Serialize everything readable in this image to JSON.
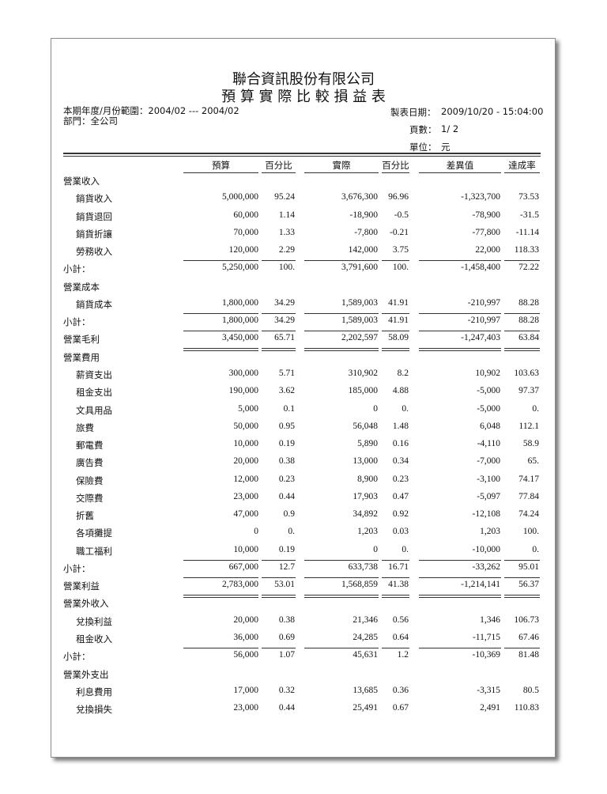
{
  "report": {
    "company": "聯合資訊股份有限公司",
    "title": "預 算 實 際 比 較 損 益 表",
    "period_label": "本期年度/月份範圍：2004/02 --- 2004/02",
    "department_label": "部門：全公司",
    "date_label": "製表日期：",
    "date_value": "2009/10/20 - 15:04:00",
    "page_label": "頁數：",
    "page_value": "1/ 2",
    "unit_label": "單位：",
    "unit_value": "元"
  },
  "columns": [
    "預算",
    "百分比",
    "實際",
    "百分比",
    "差異值",
    "達成率"
  ],
  "rows": [
    {
      "kind": "section",
      "label": "營業收入",
      "values": []
    },
    {
      "kind": "item",
      "label": "銷貨收入",
      "values": [
        "5,000,000",
        "95.24",
        "3,676,300",
        "96.96",
        "-1,323,700",
        "73.53"
      ]
    },
    {
      "kind": "item",
      "label": "銷貨退回",
      "values": [
        "60,000",
        "1.14",
        "-18,900",
        "-0.5",
        "-78,900",
        "-31.5"
      ]
    },
    {
      "kind": "item",
      "label": "銷貨折讓",
      "values": [
        "70,000",
        "1.33",
        "-7,800",
        "-0.21",
        "-77,800",
        "-11.14"
      ]
    },
    {
      "kind": "item",
      "label": "勞務收入",
      "values": [
        "120,000",
        "2.29",
        "142,000",
        "3.75",
        "22,000",
        "118.33"
      ]
    },
    {
      "kind": "subtotal",
      "label": "小計：",
      "values": [
        "5,250,000",
        "100.",
        "3,791,600",
        "100.",
        "-1,458,400",
        "72.22"
      ]
    },
    {
      "kind": "section",
      "label": "營業成本",
      "values": []
    },
    {
      "kind": "item",
      "label": "銷貨成本",
      "values": [
        "1,800,000",
        "34.29",
        "1,589,003",
        "41.91",
        "-210,997",
        "88.28"
      ]
    },
    {
      "kind": "subtotal",
      "label": "小計：",
      "values": [
        "1,800,000",
        "34.29",
        "1,589,003",
        "41.91",
        "-210,997",
        "88.28"
      ]
    },
    {
      "kind": "total",
      "label": "營業毛利",
      "values": [
        "3,450,000",
        "65.71",
        "2,202,597",
        "58.09",
        "-1,247,403",
        "63.84"
      ]
    },
    {
      "kind": "section",
      "label": "營業費用",
      "values": []
    },
    {
      "kind": "item",
      "label": "薪資支出",
      "values": [
        "300,000",
        "5.71",
        "310,902",
        "8.2",
        "10,902",
        "103.63"
      ]
    },
    {
      "kind": "item",
      "label": "租金支出",
      "values": [
        "190,000",
        "3.62",
        "185,000",
        "4.88",
        "-5,000",
        "97.37"
      ]
    },
    {
      "kind": "item",
      "label": "文具用品",
      "values": [
        "5,000",
        "0.1",
        "0",
        "0.",
        "-5,000",
        "0."
      ]
    },
    {
      "kind": "item",
      "label": "旅費",
      "values": [
        "50,000",
        "0.95",
        "56,048",
        "1.48",
        "6,048",
        "112.1"
      ]
    },
    {
      "kind": "item",
      "label": "郵電費",
      "values": [
        "10,000",
        "0.19",
        "5,890",
        "0.16",
        "-4,110",
        "58.9"
      ]
    },
    {
      "kind": "item",
      "label": "廣告費",
      "values": [
        "20,000",
        "0.38",
        "13,000",
        "0.34",
        "-7,000",
        "65."
      ]
    },
    {
      "kind": "item",
      "label": "保險費",
      "values": [
        "12,000",
        "0.23",
        "8,900",
        "0.23",
        "-3,100",
        "74.17"
      ]
    },
    {
      "kind": "item",
      "label": "交際費",
      "values": [
        "23,000",
        "0.44",
        "17,903",
        "0.47",
        "-5,097",
        "77.84"
      ]
    },
    {
      "kind": "item",
      "label": "折舊",
      "values": [
        "47,000",
        "0.9",
        "34,892",
        "0.92",
        "-12,108",
        "74.24"
      ]
    },
    {
      "kind": "item",
      "label": "各項攤提",
      "values": [
        "0",
        "0.",
        "1,203",
        "0.03",
        "1,203",
        "100."
      ]
    },
    {
      "kind": "item",
      "label": "職工福利",
      "values": [
        "10,000",
        "0.19",
        "0",
        "0.",
        "-10,000",
        "0."
      ]
    },
    {
      "kind": "subtotal",
      "label": "小計：",
      "values": [
        "667,000",
        "12.7",
        "633,738",
        "16.71",
        "-33,262",
        "95.01"
      ]
    },
    {
      "kind": "total",
      "label": "營業利益",
      "values": [
        "2,783,000",
        "53.01",
        "1,568,859",
        "41.38",
        "-1,214,141",
        "56.37"
      ]
    },
    {
      "kind": "section",
      "label": "營業外收入",
      "values": []
    },
    {
      "kind": "item",
      "label": "兌換利益",
      "values": [
        "20,000",
        "0.38",
        "21,346",
        "0.56",
        "1,346",
        "106.73"
      ]
    },
    {
      "kind": "item",
      "label": "租金收入",
      "values": [
        "36,000",
        "0.69",
        "24,285",
        "0.64",
        "-11,715",
        "67.46"
      ]
    },
    {
      "kind": "subtotal",
      "label": "小計：",
      "values": [
        "56,000",
        "1.07",
        "45,631",
        "1.2",
        "-10,369",
        "81.48"
      ]
    },
    {
      "kind": "section",
      "label": "營業外支出",
      "values": []
    },
    {
      "kind": "item",
      "label": "利息費用",
      "values": [
        "17,000",
        "0.32",
        "13,685",
        "0.36",
        "-3,315",
        "80.5"
      ]
    },
    {
      "kind": "item",
      "label": "兌換損失",
      "values": [
        "23,000",
        "0.44",
        "25,491",
        "0.67",
        "2,491",
        "110.83"
      ]
    }
  ]
}
